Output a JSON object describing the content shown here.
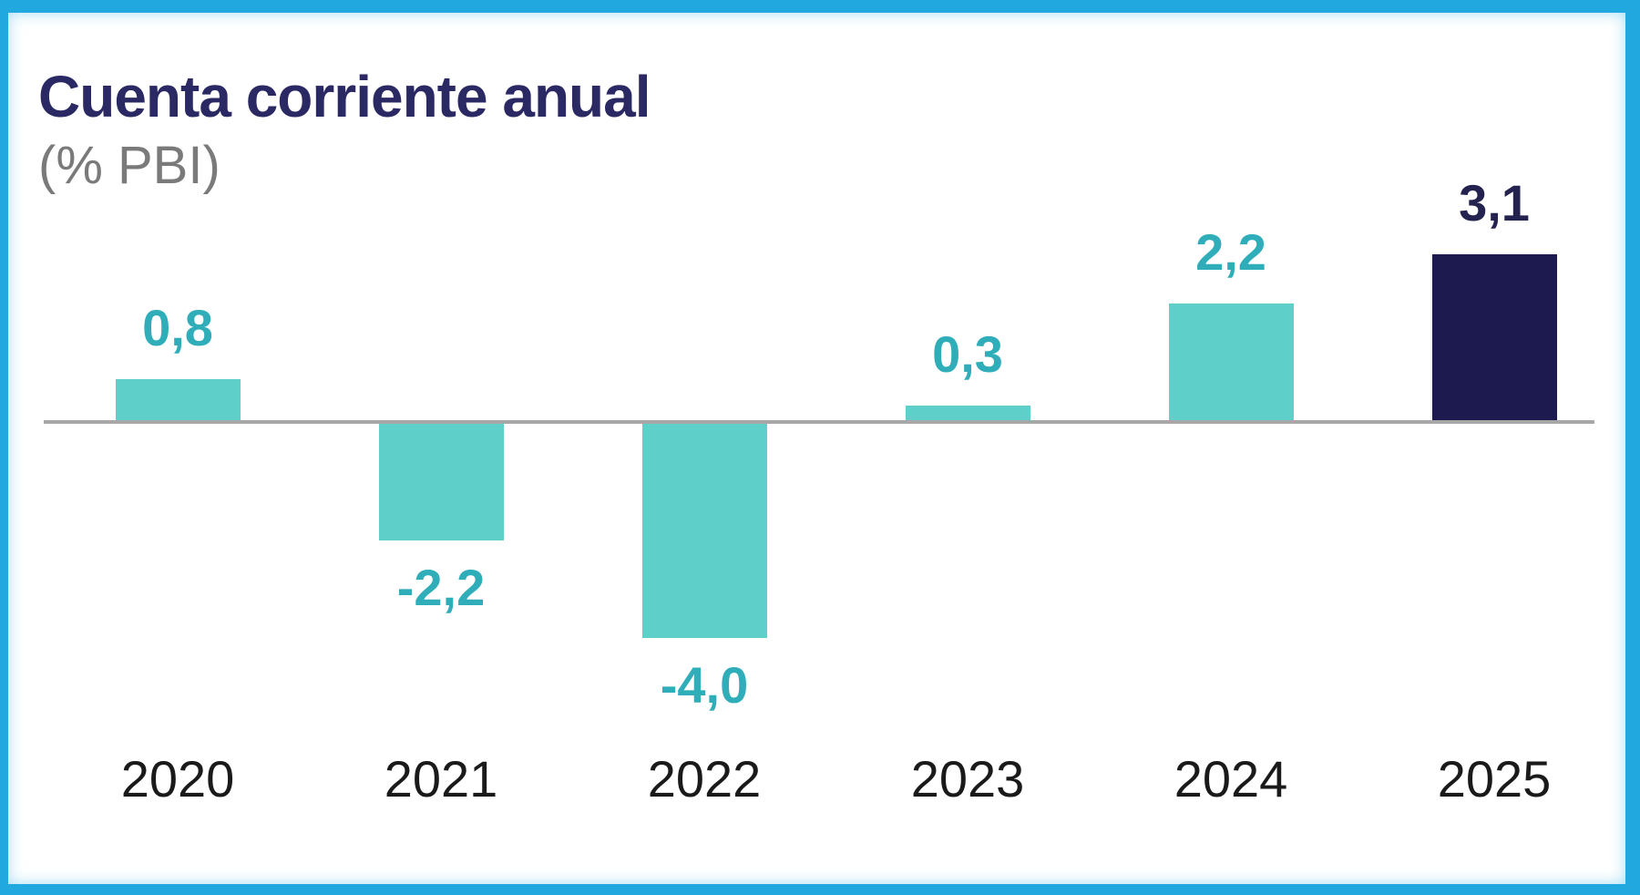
{
  "title": {
    "text": "Cuenta corriente anual",
    "color": "#2B2963"
  },
  "subtitle": {
    "text": "(% PBI)",
    "color": "#7A7A7A"
  },
  "frame": {
    "border_color": "#21A8DF",
    "background": "#FFFFFF"
  },
  "chart_data": {
    "type": "bar",
    "title": "Cuenta corriente anual",
    "subtitle": "(% PBI)",
    "xlabel": "",
    "ylabel": "",
    "categories": [
      "2020",
      "2021",
      "2022",
      "2023",
      "2024",
      "2025"
    ],
    "values": [
      0.8,
      -2.2,
      -4.0,
      0.3,
      2.2,
      3.1
    ],
    "value_labels": [
      "0,8",
      "-2,2",
      "-4,0",
      "0,3",
      "2,2",
      "3,1"
    ],
    "decimal_separator": ",",
    "baseline": 0,
    "ylim": [
      -4.5,
      3.5
    ],
    "grid": false,
    "legend": false,
    "bar_colors": [
      "#5ECFC9",
      "#5ECFC9",
      "#5ECFC9",
      "#5ECFC9",
      "#5ECFC9",
      "#1C1A4E"
    ],
    "highlight_index": 5,
    "highlight_bar_color": "#1C1A4E",
    "default_bar_color": "#5ECFC9",
    "value_label_colors": [
      "#2FAEBA",
      "#2FAEBA",
      "#2FAEBA",
      "#2FAEBA",
      "#2FAEBA",
      "#24224E"
    ],
    "category_label_color": "#1A1A1A",
    "axis_line_color": "#A7A7A7"
  }
}
